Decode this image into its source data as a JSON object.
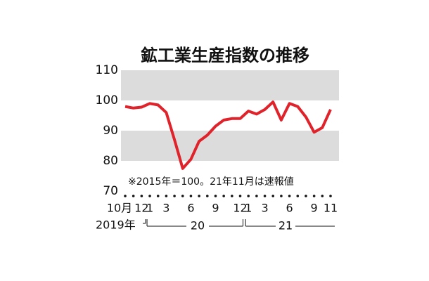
{
  "chart_data": {
    "type": "line",
    "title": "鉱工業生産指数の推移",
    "note": "※2015年＝100。21年11月は速報値",
    "categories": [
      "10月",
      null,
      "12",
      "1",
      null,
      "3",
      null,
      null,
      "6",
      null,
      null,
      "9",
      null,
      null,
      "12",
      "1",
      null,
      "3",
      null,
      null,
      "6",
      null,
      null,
      "9",
      null,
      "11"
    ],
    "values": [
      98,
      97.5,
      97.8,
      99,
      98.5,
      96,
      87,
      77.5,
      80.5,
      86.5,
      88.5,
      91.5,
      93.5,
      94,
      94,
      96.5,
      95.5,
      97,
      99.5,
      93.5,
      99,
      98,
      94.5,
      89.5,
      91,
      97
    ],
    "color": "#e0222b",
    "ylim": [
      70,
      110
    ],
    "yticks": [
      70,
      80,
      90,
      100,
      110
    ],
    "shade_bands": [
      [
        80,
        90
      ],
      [
        100,
        110
      ]
    ],
    "year_labels": [
      "2019年",
      "20",
      "21"
    ]
  }
}
